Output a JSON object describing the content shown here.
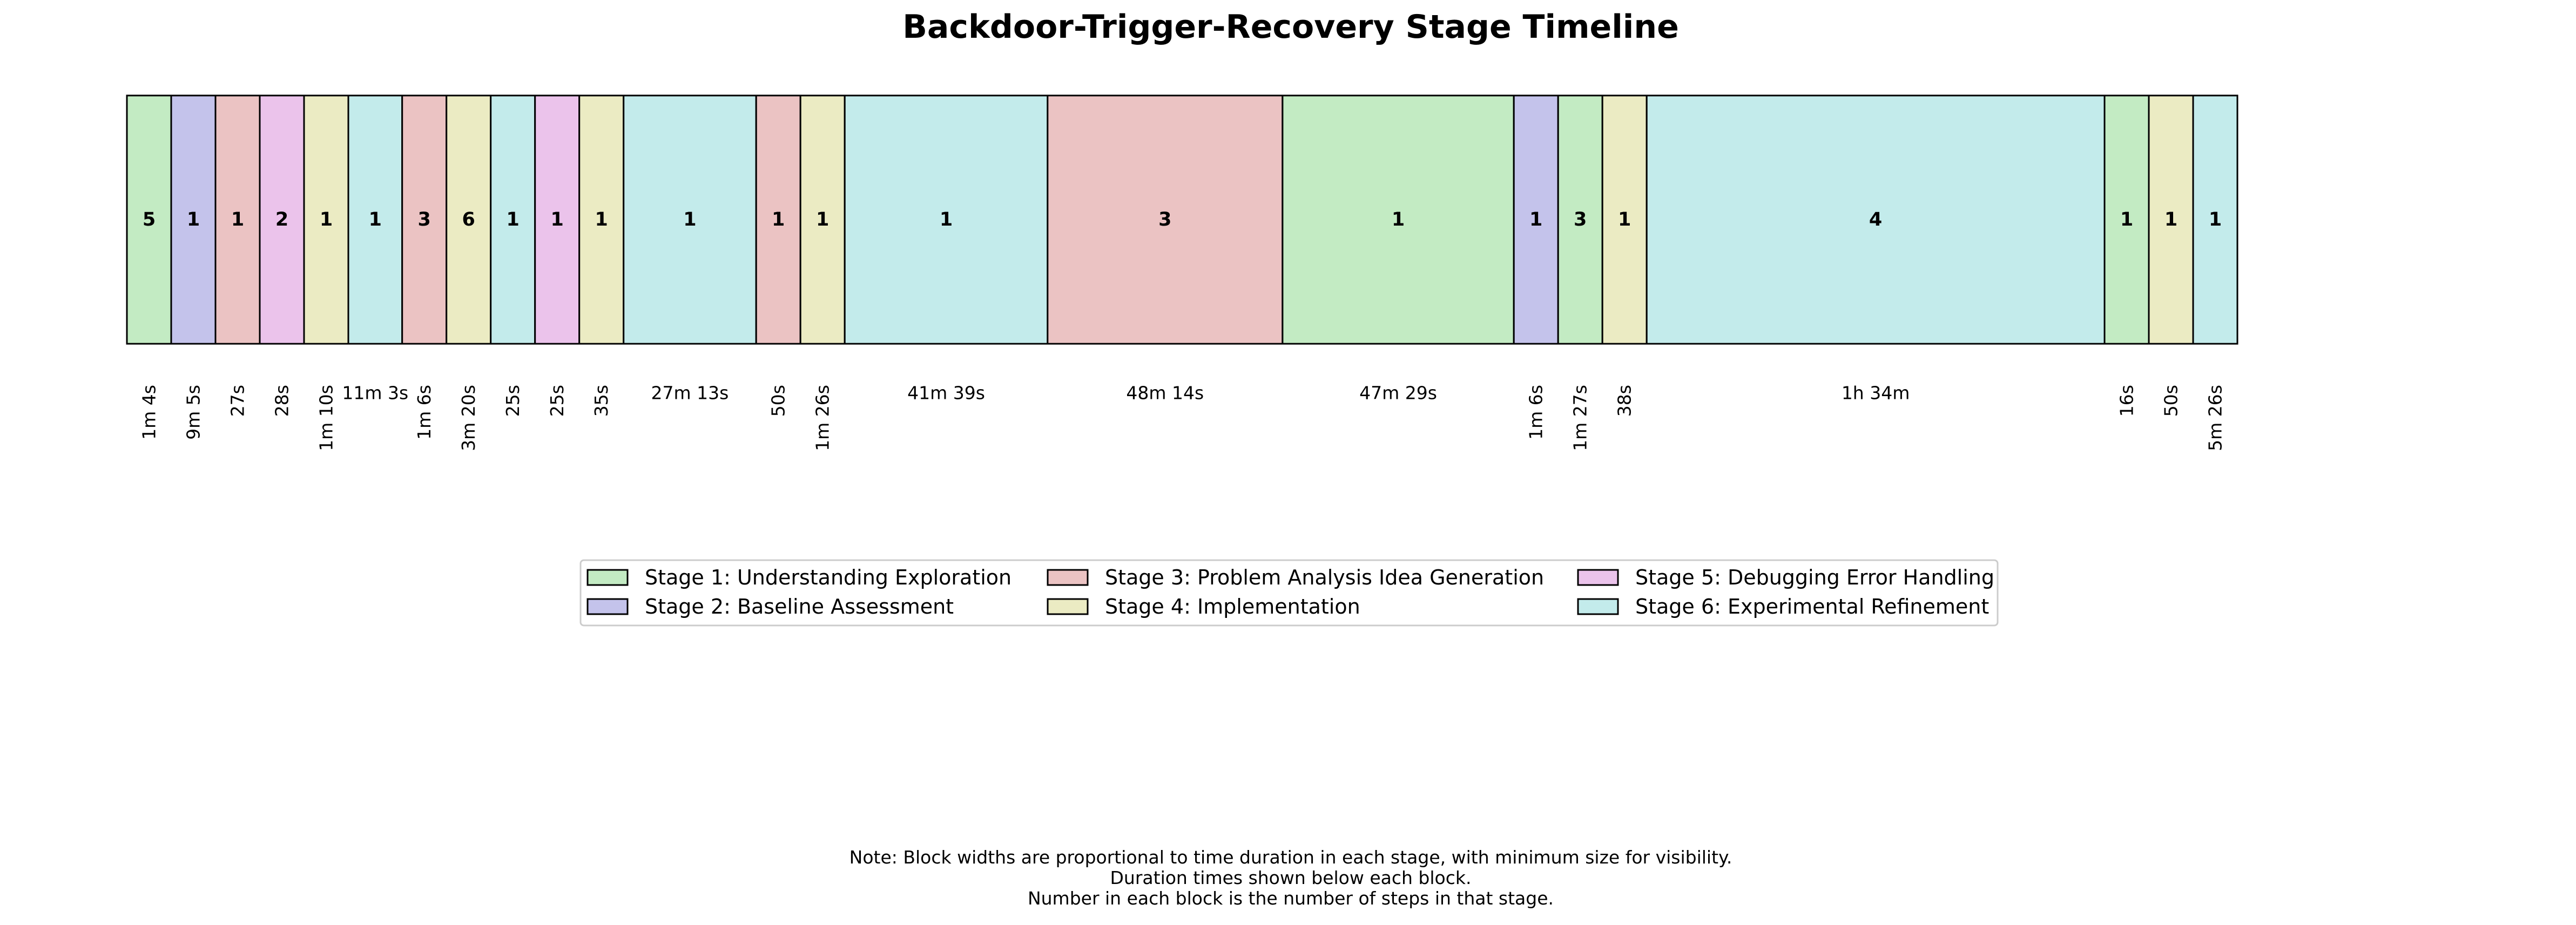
{
  "chart_data": {
    "type": "timeline",
    "title": "Backdoor-Trigger-Recovery Stage Timeline",
    "stages": [
      {
        "id": 1,
        "name": "Stage 1: Understanding Exploration",
        "color": "#c3ebc3"
      },
      {
        "id": 2,
        "name": "Stage 2: Baseline Assessment",
        "color": "#c4c3eb"
      },
      {
        "id": 3,
        "name": "Stage 3: Problem Analysis Idea Generation",
        "color": "#ebc3c3"
      },
      {
        "id": 4,
        "name": "Stage 4: Implementation",
        "color": "#ebebc3"
      },
      {
        "id": 5,
        "name": "Stage 5: Debugging Error Handling",
        "color": "#ebc3eb"
      },
      {
        "id": 6,
        "name": "Stage 6: Experimental Refinement",
        "color": "#c3ebeb"
      }
    ],
    "blocks": [
      {
        "stage": 1,
        "steps": "5",
        "duration": "1m 4s",
        "seconds": 64
      },
      {
        "stage": 2,
        "steps": "1",
        "duration": "9m 5s",
        "seconds": 545
      },
      {
        "stage": 3,
        "steps": "1",
        "duration": "27s",
        "seconds": 27
      },
      {
        "stage": 5,
        "steps": "2",
        "duration": "28s",
        "seconds": 28
      },
      {
        "stage": 4,
        "steps": "1",
        "duration": "1m 10s",
        "seconds": 70
      },
      {
        "stage": 6,
        "steps": "1",
        "duration": "11m 3s",
        "seconds": 663
      },
      {
        "stage": 3,
        "steps": "3",
        "duration": "1m 6s",
        "seconds": 66
      },
      {
        "stage": 4,
        "steps": "6",
        "duration": "3m 20s",
        "seconds": 200
      },
      {
        "stage": 6,
        "steps": "1",
        "duration": "25s",
        "seconds": 25
      },
      {
        "stage": 5,
        "steps": "1",
        "duration": "25s",
        "seconds": 25
      },
      {
        "stage": 4,
        "steps": "1",
        "duration": "35s",
        "seconds": 35
      },
      {
        "stage": 6,
        "steps": "1",
        "duration": "27m 13s",
        "seconds": 1633
      },
      {
        "stage": 3,
        "steps": "1",
        "duration": "50s",
        "seconds": 50
      },
      {
        "stage": 4,
        "steps": "1",
        "duration": "1m 26s",
        "seconds": 86
      },
      {
        "stage": 6,
        "steps": "1",
        "duration": "41m 39s",
        "seconds": 2499
      },
      {
        "stage": 3,
        "steps": "3",
        "duration": "48m 14s",
        "seconds": 2894
      },
      {
        "stage": 1,
        "steps": "1",
        "duration": "47m 29s",
        "seconds": 2849
      },
      {
        "stage": 2,
        "steps": "1",
        "duration": "1m 6s",
        "seconds": 66
      },
      {
        "stage": 1,
        "steps": "3",
        "duration": "1m 27s",
        "seconds": 87
      },
      {
        "stage": 4,
        "steps": "1",
        "duration": "38s",
        "seconds": 38
      },
      {
        "stage": 6,
        "steps": "4",
        "duration": "1h 34m",
        "seconds": 5640
      },
      {
        "stage": 1,
        "steps": "1",
        "duration": "16s",
        "seconds": 16
      },
      {
        "stage": 4,
        "steps": "1",
        "duration": "50s",
        "seconds": 50
      },
      {
        "stage": 6,
        "steps": "1",
        "duration": "5m 26s",
        "seconds": 326
      }
    ],
    "legend_position": "center",
    "legend_columns": 3,
    "grid": false
  },
  "note_lines": [
    "Note: Block widths are proportional to time duration in each stage, with minimum size for visibility.",
    "Duration times shown below each block.",
    "Number in each block is the number of steps in that stage."
  ]
}
